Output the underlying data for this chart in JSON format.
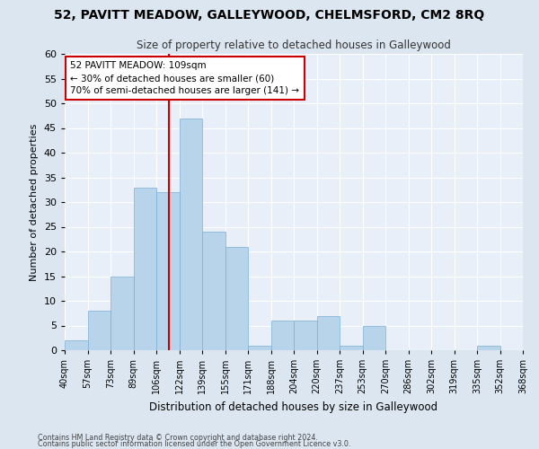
{
  "title": "52, PAVITT MEADOW, GALLEYWOOD, CHELMSFORD, CM2 8RQ",
  "subtitle": "Size of property relative to detached houses in Galleywood",
  "xlabel": "Distribution of detached houses by size in Galleywood",
  "ylabel": "Number of detached properties",
  "bar_values": [
    2,
    8,
    15,
    33,
    32,
    47,
    24,
    21,
    1,
    6,
    6,
    7,
    1,
    5,
    0,
    0,
    0,
    0,
    1,
    0
  ],
  "bar_labels": [
    "40sqm",
    "57sqm",
    "73sqm",
    "89sqm",
    "106sqm",
    "122sqm",
    "139sqm",
    "155sqm",
    "171sqm",
    "188sqm",
    "204sqm",
    "220sqm",
    "237sqm",
    "253sqm",
    "270sqm",
    "286sqm",
    "302sqm",
    "319sqm",
    "335sqm",
    "352sqm",
    "368sqm"
  ],
  "bar_color": "#b8d4ea",
  "bar_edge_color": "#7aaed6",
  "property_line_x": 4.53,
  "property_line_color": "#cc0000",
  "annotation_text": "52 PAVITT MEADOW: 109sqm\n← 30% of detached houses are smaller (60)\n70% of semi-detached houses are larger (141) →",
  "annotation_box_color": "#ffffff",
  "annotation_box_edge_color": "#cc0000",
  "ylim": [
    0,
    60
  ],
  "yticks": [
    0,
    5,
    10,
    15,
    20,
    25,
    30,
    35,
    40,
    45,
    50,
    55,
    60
  ],
  "bg_color": "#dce6f0",
  "plot_bg_color": "#e8eff8",
  "footer_line1": "Contains HM Land Registry data © Crown copyright and database right 2024.",
  "footer_line2": "Contains public sector information licensed under the Open Government Licence v3.0."
}
